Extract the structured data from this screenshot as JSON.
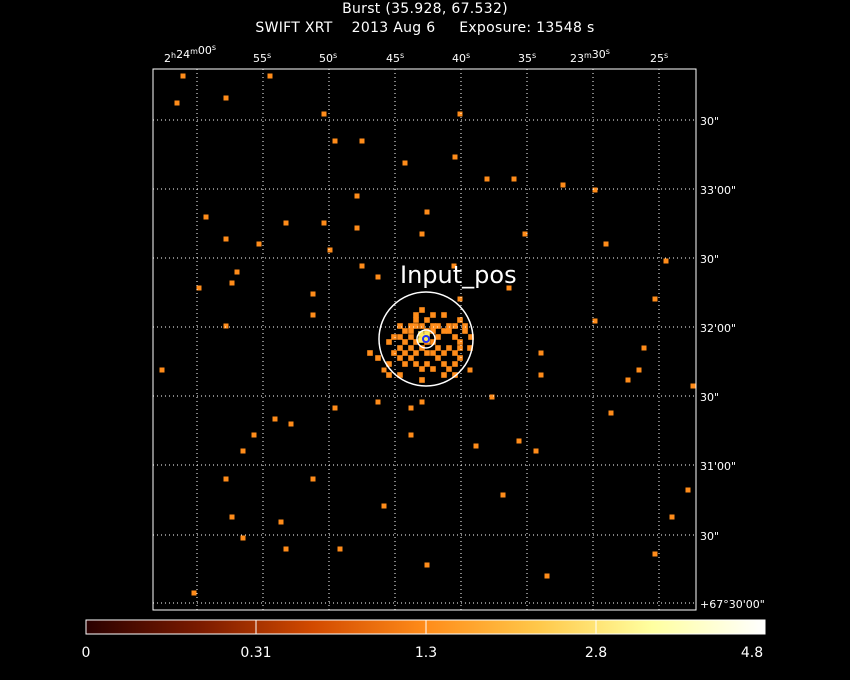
{
  "header": {
    "title_line1": "Burst (35.928, 67.532)",
    "instrument": "SWIFT XRT",
    "date": "2013 Aug  6",
    "exposure": "Exposure: 13548 s"
  },
  "image": {
    "ra_ticks": [
      {
        "h": "2",
        "m": "24",
        "s": "00"
      },
      {
        "s": "55"
      },
      {
        "s": "50"
      },
      {
        "s": "45"
      },
      {
        "s": "40"
      },
      {
        "s": "35"
      },
      {
        "m": "23",
        "s": "30"
      },
      {
        "s": "25"
      }
    ],
    "dec_ticks": [
      "30\"",
      "33'00\"",
      "30\"",
      "32'00\"",
      "30\"",
      "31'00\"",
      "30\"",
      "+67°30'00\""
    ],
    "region_label": "Input_pos",
    "colors": {
      "frame": "#ffffff",
      "grid": "#ffffff",
      "pixel": "#ff8c1a",
      "region": "#ffffff",
      "center": "#2030ff"
    }
  },
  "colorbar": {
    "labels": [
      "0",
      "0.31",
      "1.3",
      "2.8",
      "4.8"
    ],
    "stops": [
      "#2a0000",
      "#7a1a00",
      "#d24a00",
      "#ff8c1a",
      "#ffc84a",
      "#ffffa0",
      "#ffffff"
    ]
  }
}
